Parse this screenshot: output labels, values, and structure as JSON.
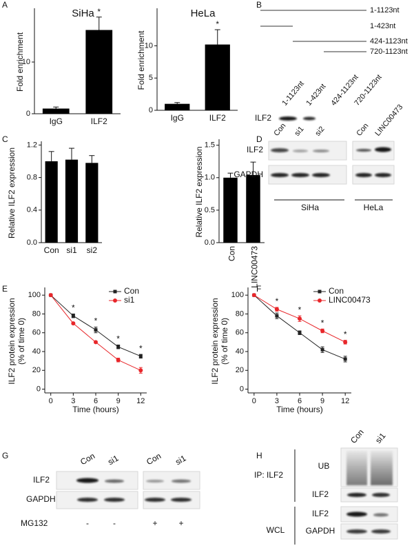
{
  "panel_labels": [
    "A",
    "B",
    "C",
    "D",
    "E",
    "F",
    "G",
    "H"
  ],
  "chart_data": [
    {
      "type": "bar",
      "title": "SiHa",
      "categories": [
        "IgG",
        "ILF2"
      ],
      "values": [
        1,
        16.2
      ],
      "errors": [
        0.3,
        2.5
      ],
      "color": "#000000",
      "ylabel": "Fold enrichment",
      "ylim": [
        0,
        20
      ],
      "yticks": [
        0,
        10
      ],
      "significance": [
        null,
        "*"
      ]
    },
    {
      "type": "bar",
      "title": "HeLa",
      "categories": [
        "IgG",
        "ILF2"
      ],
      "values": [
        1,
        10.2
      ],
      "errors": [
        0.2,
        2.3
      ],
      "color": "#000000",
      "ylabel": "Fold enrichment",
      "ylim": [
        0,
        15.5
      ],
      "yticks": [
        0,
        5,
        10
      ],
      "significance": [
        null,
        "*"
      ]
    },
    {
      "type": "bar",
      "categories": [
        "Con",
        "si1",
        "si2"
      ],
      "values": [
        1.0,
        1.02,
        0.98
      ],
      "errors": [
        0.12,
        0.14,
        0.09
      ],
      "color": "#000000",
      "ylabel": "Relative ILF2 expression",
      "ylim": [
        0,
        1.22
      ],
      "yticks": [
        {
          "value": 0,
          "label": "0.0"
        },
        0.4,
        0.8,
        1.2
      ]
    },
    {
      "type": "bar",
      "categories": [
        "Con",
        "LINC00473"
      ],
      "values": [
        1.0,
        1.04
      ],
      "errors": [
        0.07,
        0.2
      ],
      "color": "#000000",
      "ylabel": "Relative ILF2 expression",
      "ylim": [
        0,
        1.56
      ],
      "yticks": [
        {
          "value": 0,
          "label": "0.0"
        },
        0.5,
        {
          "value": 1,
          "label": "1.0"
        },
        1.5
      ]
    },
    {
      "type": "line",
      "x": [
        0,
        3,
        6,
        9,
        12
      ],
      "series": [
        {
          "name": "Con",
          "color": "#222222",
          "marker": "square",
          "values": [
            100,
            78,
            63,
            45,
            35
          ],
          "errors": [
            0,
            2,
            3,
            2,
            2
          ]
        },
        {
          "name": "si1",
          "color": "#e8262a",
          "marker": "circle",
          "values": [
            100,
            70,
            50,
            31,
            20
          ],
          "errors": [
            0,
            1,
            1,
            2,
            3
          ]
        }
      ],
      "significance": [
        null,
        "*",
        "*",
        "*",
        "*"
      ],
      "xlabel": "Time (hours)",
      "ylabel": [
        "ILF2 protein expression",
        "(% of time 0)"
      ],
      "xlim": [
        -0.8,
        12.8
      ],
      "xticks": [
        0,
        3,
        6,
        9,
        12
      ],
      "ylim": [
        -4,
        106
      ],
      "yticks": [
        0,
        20,
        40,
        60,
        80,
        100
      ],
      "legend": "upper right"
    },
    {
      "type": "line",
      "x": [
        0,
        3,
        6,
        9,
        12
      ],
      "series": [
        {
          "name": "Con",
          "color": "#222222",
          "marker": "square",
          "values": [
            100,
            78,
            60,
            42,
            32
          ],
          "errors": [
            0,
            3,
            2,
            3,
            3
          ]
        },
        {
          "name": "LINC00473",
          "color": "#e8262a",
          "marker": "circle",
          "values": [
            100,
            85,
            75,
            62,
            50
          ],
          "errors": [
            0,
            2,
            3,
            2,
            2
          ]
        }
      ],
      "significance": [
        null,
        "*",
        "*",
        "*",
        "*"
      ],
      "xlabel": "Time (hours)",
      "ylabel": [
        "ILF2 protein expression",
        "(% of time 0)"
      ],
      "xlim": [
        -0.8,
        12.8
      ],
      "xticks": [
        0,
        3,
        6,
        9,
        12
      ],
      "ylim": [
        -4,
        106
      ],
      "yticks": [
        0,
        20,
        40,
        60,
        80,
        100
      ],
      "legend": "upper right"
    }
  ],
  "blot_b": {
    "constructs": [
      "1-1123nt",
      "1-423nt",
      "424-1123nt",
      "720-1123nt"
    ],
    "lanes": [
      "1-1123nt",
      "1-423nt",
      "424-1123nt",
      "720-1123nt"
    ],
    "row": "ILF2"
  },
  "blot_d": {
    "lanes_siha": [
      "Con",
      "si1",
      "si2"
    ],
    "lanes_hela": [
      "Con",
      "LINC00473"
    ],
    "rows": [
      "ILF2",
      "GAPDH"
    ],
    "groups": [
      "SiHa",
      "HeLa"
    ]
  },
  "blot_g": {
    "lanes": [
      "Con",
      "si1",
      "Con",
      "si1"
    ],
    "rows": [
      "ILF2",
      "GAPDH"
    ],
    "treatment": "MG132",
    "signs": [
      "-",
      "-",
      "+",
      "+"
    ]
  },
  "blot_h": {
    "lanes": [
      "Con",
      "si1"
    ],
    "ip": "IP: ILF2",
    "ip_rows": [
      "UB",
      "ILF2"
    ],
    "wcl": "WCL",
    "wcl_rows": [
      "ILF2",
      "GAPDH"
    ]
  }
}
